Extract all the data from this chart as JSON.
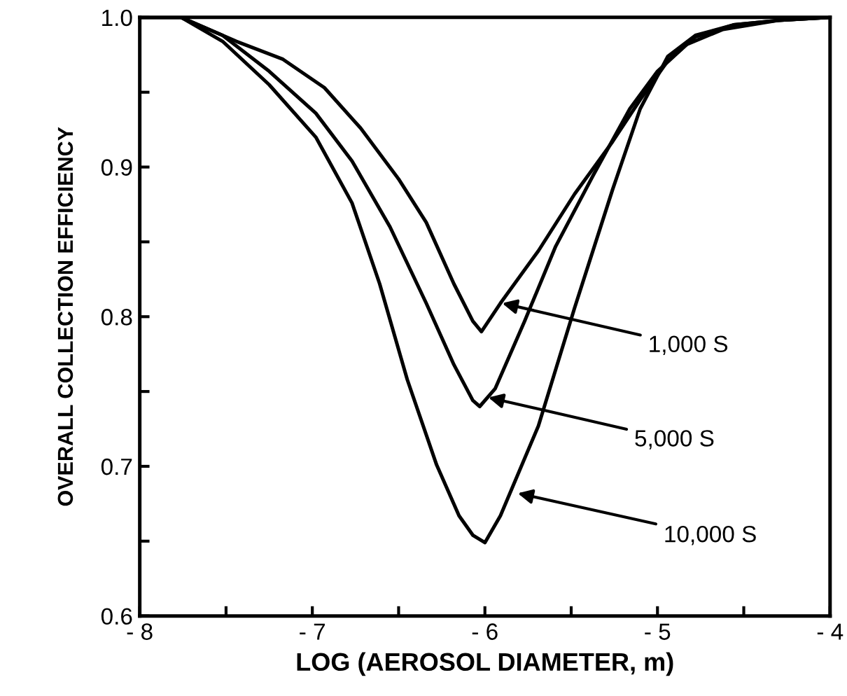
{
  "chart_data": {
    "type": "line",
    "xlabel": "LOG (AEROSOL DIAMETER, m)",
    "ylabel": "OVERALL COLLECTION EFFICIENCY",
    "xlim": [
      -8,
      -4
    ],
    "ylim": [
      0.6,
      1.0
    ],
    "xticks": [
      {
        "value": -8,
        "label": "- 8"
      },
      {
        "value": -7.5,
        "label": null
      },
      {
        "value": -7,
        "label": "- 7"
      },
      {
        "value": -6.5,
        "label": null
      },
      {
        "value": -6,
        "label": "- 6"
      },
      {
        "value": -5.5,
        "label": null
      },
      {
        "value": -5,
        "label": "- 5"
      },
      {
        "value": -4.5,
        "label": null
      },
      {
        "value": -4,
        "label": "- 4"
      }
    ],
    "yticks": [
      {
        "value": 0.6,
        "label": "0.6"
      },
      {
        "value": 0.65,
        "label": null
      },
      {
        "value": 0.7,
        "label": "0.7"
      },
      {
        "value": 0.75,
        "label": null
      },
      {
        "value": 0.8,
        "label": "0.8"
      },
      {
        "value": 0.85,
        "label": null
      },
      {
        "value": 0.9,
        "label": "0.9"
      },
      {
        "value": 0.95,
        "label": null
      },
      {
        "value": 1.0,
        "label": "1.0"
      }
    ],
    "grid": false,
    "legend": false,
    "marker": "none",
    "line_style": "solid",
    "series": [
      {
        "color": "#000000",
        "x": [
          -8,
          -7.76,
          -7.44,
          -7.17,
          -6.93,
          -6.72,
          -6.5,
          -6.34,
          -6.18,
          -6.07,
          -6.02,
          -5.91,
          -5.69,
          -5.48,
          -5.26,
          -5.1,
          -4.94,
          -4.78,
          -4.56,
          -4.3,
          -4
        ],
        "values": [
          1.0,
          1.0,
          0.984,
          0.972,
          0.953,
          0.926,
          0.892,
          0.863,
          0.822,
          0.797,
          0.79,
          0.809,
          0.844,
          0.882,
          0.917,
          0.945,
          0.971,
          0.987,
          0.995,
          0.998,
          1.0
        ]
      },
      {
        "color": "#000000",
        "x": [
          -8,
          -7.76,
          -7.52,
          -7.25,
          -6.98,
          -6.77,
          -6.55,
          -6.34,
          -6.18,
          -6.07,
          -6.03,
          -5.94,
          -5.77,
          -5.59,
          -5.37,
          -5.16,
          -5.0,
          -4.83,
          -4.62,
          -4.3,
          -4
        ],
        "values": [
          1.0,
          1.0,
          0.988,
          0.964,
          0.936,
          0.904,
          0.86,
          0.809,
          0.768,
          0.744,
          0.74,
          0.752,
          0.797,
          0.847,
          0.895,
          0.939,
          0.964,
          0.982,
          0.992,
          0.998,
          1.0
        ]
      },
      {
        "color": "#000000",
        "x": [
          -8,
          -7.76,
          -7.52,
          -7.25,
          -6.98,
          -6.77,
          -6.61,
          -6.45,
          -6.28,
          -6.15,
          -6.07,
          -6.0,
          -5.91,
          -5.69,
          -5.48,
          -5.26,
          -5.1,
          -4.94,
          -4.78,
          -4.56,
          -4.3,
          -4
        ],
        "values": [
          1.0,
          1.0,
          0.984,
          0.955,
          0.92,
          0.876,
          0.822,
          0.758,
          0.701,
          0.667,
          0.654,
          0.649,
          0.667,
          0.727,
          0.806,
          0.885,
          0.939,
          0.974,
          0.988,
          0.995,
          0.998,
          1.0
        ]
      }
    ],
    "annotations": [
      {
        "text": "1,000 S",
        "x": -5.9,
        "y": 0.809
      },
      {
        "text": "5,000 S",
        "x": -5.98,
        "y": 0.746
      },
      {
        "text": "10,000 S",
        "x": -5.81,
        "y": 0.682
      }
    ]
  }
}
